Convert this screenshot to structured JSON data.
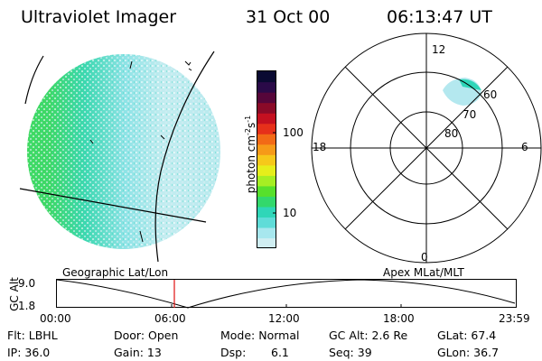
{
  "header": {
    "instrument": "Ultraviolet Imager",
    "date": "31 Oct 00",
    "time": "06:13:47 UT"
  },
  "colorbar": {
    "title": "photon cm",
    "title_exp1": "-2",
    "title_mid": "s",
    "title_exp2": "-1",
    "ticks": [
      "100",
      "10"
    ],
    "colors": [
      "#cfeef2",
      "#a7e7ee",
      "#5fdcd8",
      "#2fd6b8",
      "#33d86c",
      "#57e02c",
      "#a6ee23",
      "#e6ee1b",
      "#f6c81a",
      "#f69a18",
      "#f26a16",
      "#e6301a",
      "#c41020",
      "#8a0a28",
      "#56063a",
      "#2a0a48",
      "#0a0a32"
    ]
  },
  "polar": {
    "mlt_labels": [
      "12",
      "18",
      "6",
      "0"
    ],
    "lat_labels": [
      "60",
      "70",
      "80"
    ]
  },
  "geo_label": "Geographic Lat/Lon",
  "apex_label": "Apex MLat/MLT",
  "alt_plot": {
    "ylabel": "GC Alt",
    "yticks": [
      "9.0",
      "1.8"
    ],
    "xticks": [
      "00:00",
      "06:00",
      "12:00",
      "18:00",
      "23:59"
    ],
    "current_time": "06:13:47"
  },
  "info": {
    "flt": "Flt: LBHL",
    "door": "Door: Open",
    "mode": "Mode: Normal",
    "gcalt": "GC Alt: 2.6 Re",
    "glat": "GLat:  67.4",
    "ip": "IP: 36.0",
    "gain": "Gain: 13",
    "dsp_label": "Dsp:",
    "dsp_value": "6.1",
    "seq": "Seq: 39",
    "glon": "GLon:  36.7"
  }
}
